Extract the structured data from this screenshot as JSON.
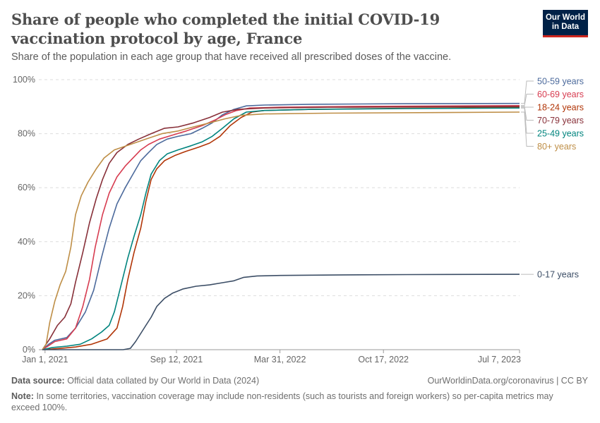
{
  "header": {
    "title": "Share of people who completed the initial COVID-19 vaccination protocol by age, France",
    "subtitle": "Share of the population in each age group that have received all prescribed doses of the vaccine.",
    "logo_line1": "Our World",
    "logo_line2": "in Data"
  },
  "footer": {
    "source_label": "Data source:",
    "source_text": "Official data collated by Our World in Data (2024)",
    "citation": "OurWorldinData.org/coronavirus | CC BY",
    "note_label": "Note:",
    "note_text": "In some territories, vaccination coverage may include non-residents (such as tourists and foreign workers) so per-capita metrics may exceed 100%."
  },
  "chart_data": {
    "type": "line",
    "x_ticks": [
      "2021-01-01",
      "2021-09-12",
      "2022-03-31",
      "2022-10-17",
      "2023-07-07"
    ],
    "x_tick_labels": [
      "Jan 1, 2021",
      "Sep 12, 2021",
      "Mar 31, 2022",
      "Oct 17, 2022",
      "Jul 7, 2023"
    ],
    "y_ticks": [
      0,
      20,
      40,
      60,
      80,
      100
    ],
    "y_tick_labels": [
      "0%",
      "20%",
      "40%",
      "60%",
      "80%",
      "100%"
    ],
    "xlim": [
      "2020-12-20",
      "2023-07-07"
    ],
    "ylim": [
      0,
      100
    ],
    "grid": "horizontal dashed",
    "legend": "right, line-end labels",
    "series": [
      {
        "name": "50-59 years",
        "color": "#4c6a9c",
        "points": [
          [
            "2020-12-27",
            0
          ],
          [
            "2021-01-08",
            2
          ],
          [
            "2021-01-20",
            3.5
          ],
          [
            "2021-02-12",
            4.5
          ],
          [
            "2021-03-01",
            8
          ],
          [
            "2021-03-20",
            14
          ],
          [
            "2021-04-05",
            22
          ],
          [
            "2021-04-20",
            34
          ],
          [
            "2021-05-05",
            45
          ],
          [
            "2021-05-20",
            54
          ],
          [
            "2021-06-05",
            60
          ],
          [
            "2021-06-20",
            65
          ],
          [
            "2021-07-05",
            70
          ],
          [
            "2021-07-20",
            73
          ],
          [
            "2021-08-05",
            76
          ],
          [
            "2021-08-25",
            78
          ],
          [
            "2021-09-15",
            79
          ],
          [
            "2021-10-10",
            80
          ],
          [
            "2021-11-01",
            82
          ],
          [
            "2021-11-20",
            84
          ],
          [
            "2021-12-10",
            87
          ],
          [
            "2022-01-01",
            89
          ],
          [
            "2022-01-25",
            90.3
          ],
          [
            "2022-03-01",
            90.6
          ],
          [
            "2022-06-01",
            90.9
          ],
          [
            "2022-12-01",
            91.1
          ],
          [
            "2023-07-07",
            91.2
          ]
        ]
      },
      {
        "name": "60-69 years",
        "color": "#d73c50",
        "points": [
          [
            "2020-12-27",
            0
          ],
          [
            "2021-01-08",
            1.5
          ],
          [
            "2021-01-20",
            3
          ],
          [
            "2021-02-12",
            4
          ],
          [
            "2021-03-01",
            8
          ],
          [
            "2021-03-15",
            16
          ],
          [
            "2021-03-28",
            26
          ],
          [
            "2021-04-08",
            38
          ],
          [
            "2021-04-22",
            50
          ],
          [
            "2021-05-05",
            58
          ],
          [
            "2021-05-20",
            64
          ],
          [
            "2021-06-05",
            68
          ],
          [
            "2021-06-20",
            71
          ],
          [
            "2021-07-05",
            74
          ],
          [
            "2021-07-20",
            76
          ],
          [
            "2021-08-10",
            78
          ],
          [
            "2021-09-05",
            79.5
          ],
          [
            "2021-10-01",
            81
          ],
          [
            "2021-11-01",
            83
          ],
          [
            "2021-11-25",
            85
          ],
          [
            "2021-12-15",
            87
          ],
          [
            "2022-01-05",
            88.5
          ],
          [
            "2022-02-01",
            89.5
          ],
          [
            "2022-04-01",
            89.8
          ],
          [
            "2022-09-01",
            90.1
          ],
          [
            "2023-07-07",
            90.4
          ]
        ]
      },
      {
        "name": "18-24 years",
        "color": "#b13507",
        "points": [
          [
            "2020-12-27",
            0
          ],
          [
            "2021-02-01",
            0.5
          ],
          [
            "2021-03-01",
            1
          ],
          [
            "2021-04-01",
            2
          ],
          [
            "2021-05-01",
            4
          ],
          [
            "2021-05-20",
            8
          ],
          [
            "2021-05-31",
            16
          ],
          [
            "2021-06-10",
            26
          ],
          [
            "2021-06-22",
            36
          ],
          [
            "2021-07-05",
            45
          ],
          [
            "2021-07-15",
            55
          ],
          [
            "2021-07-25",
            63
          ],
          [
            "2021-08-05",
            67
          ],
          [
            "2021-08-20",
            70
          ],
          [
            "2021-09-10",
            72
          ],
          [
            "2021-10-01",
            73.5
          ],
          [
            "2021-10-25",
            75
          ],
          [
            "2021-11-15",
            76.5
          ],
          [
            "2021-12-05",
            79
          ],
          [
            "2021-12-25",
            83
          ],
          [
            "2022-01-15",
            86
          ],
          [
            "2022-02-05",
            88
          ],
          [
            "2022-03-01",
            88.6
          ],
          [
            "2022-06-01",
            89
          ],
          [
            "2022-12-01",
            89.4
          ],
          [
            "2023-07-07",
            89.8
          ]
        ]
      },
      {
        "name": "70-79 years",
        "color": "#883039",
        "points": [
          [
            "2020-12-27",
            0
          ],
          [
            "2021-01-10",
            4
          ],
          [
            "2021-01-25",
            9
          ],
          [
            "2021-02-08",
            12
          ],
          [
            "2021-02-20",
            17
          ],
          [
            "2021-03-01",
            25
          ],
          [
            "2021-03-15",
            36
          ],
          [
            "2021-03-28",
            47
          ],
          [
            "2021-04-10",
            56
          ],
          [
            "2021-04-22",
            63
          ],
          [
            "2021-05-05",
            69
          ],
          [
            "2021-05-20",
            73
          ],
          [
            "2021-06-10",
            76
          ],
          [
            "2021-07-01",
            78
          ],
          [
            "2021-07-25",
            80
          ],
          [
            "2021-08-20",
            82
          ],
          [
            "2021-09-15",
            82.5
          ],
          [
            "2021-10-15",
            84
          ],
          [
            "2021-11-15",
            86
          ],
          [
            "2021-12-10",
            88
          ],
          [
            "2022-01-10",
            89
          ],
          [
            "2022-03-01",
            89.5
          ],
          [
            "2022-07-01",
            89.8
          ],
          [
            "2023-07-07",
            90.1
          ]
        ]
      },
      {
        "name": "25-49 years",
        "color": "#00847e",
        "points": [
          [
            "2020-12-27",
            0
          ],
          [
            "2021-01-15",
            0.8
          ],
          [
            "2021-02-12",
            1.3
          ],
          [
            "2021-03-10",
            2
          ],
          [
            "2021-04-01",
            4
          ],
          [
            "2021-04-20",
            6.5
          ],
          [
            "2021-05-05",
            9
          ],
          [
            "2021-05-15",
            14
          ],
          [
            "2021-05-28",
            24
          ],
          [
            "2021-06-10",
            34
          ],
          [
            "2021-06-22",
            42
          ],
          [
            "2021-07-05",
            50
          ],
          [
            "2021-07-15",
            58
          ],
          [
            "2021-07-25",
            65
          ],
          [
            "2021-08-10",
            70
          ],
          [
            "2021-08-25",
            72.5
          ],
          [
            "2021-09-15",
            74
          ],
          [
            "2021-10-10",
            75.5
          ],
          [
            "2021-11-01",
            77
          ],
          [
            "2021-11-20",
            79
          ],
          [
            "2021-12-10",
            82
          ],
          [
            "2022-01-01",
            85.5
          ],
          [
            "2022-01-25",
            88
          ],
          [
            "2022-03-01",
            88.6
          ],
          [
            "2022-06-01",
            89
          ],
          [
            "2022-12-01",
            89.3
          ],
          [
            "2023-07-07",
            89.5
          ]
        ]
      },
      {
        "name": "80+ years",
        "color": "#be8e46",
        "points": [
          [
            "2020-12-27",
            0
          ],
          [
            "2021-01-03",
            2
          ],
          [
            "2021-01-10",
            10
          ],
          [
            "2021-01-20",
            18
          ],
          [
            "2021-01-30",
            24
          ],
          [
            "2021-02-10",
            29
          ],
          [
            "2021-02-20",
            38
          ],
          [
            "2021-03-01",
            50
          ],
          [
            "2021-03-12",
            57
          ],
          [
            "2021-03-25",
            62
          ],
          [
            "2021-04-10",
            67
          ],
          [
            "2021-04-25",
            71
          ],
          [
            "2021-05-15",
            74
          ],
          [
            "2021-06-15",
            76
          ],
          [
            "2021-07-15",
            78
          ],
          [
            "2021-08-15",
            80
          ],
          [
            "2021-09-15",
            81
          ],
          [
            "2021-10-15",
            82.5
          ],
          [
            "2021-11-15",
            84
          ],
          [
            "2021-12-15",
            85.5
          ],
          [
            "2022-01-15",
            86.8
          ],
          [
            "2022-03-01",
            87.3
          ],
          [
            "2022-07-01",
            87.6
          ],
          [
            "2023-07-07",
            88
          ]
        ]
      },
      {
        "name": "0-17 years",
        "color": "#3c4e66",
        "points": [
          [
            "2020-12-27",
            0
          ],
          [
            "2021-06-01",
            0
          ],
          [
            "2021-06-15",
            0.5
          ],
          [
            "2021-06-25",
            3
          ],
          [
            "2021-07-05",
            6
          ],
          [
            "2021-07-15",
            9
          ],
          [
            "2021-07-25",
            12
          ],
          [
            "2021-08-05",
            16
          ],
          [
            "2021-08-20",
            19
          ],
          [
            "2021-09-05",
            21
          ],
          [
            "2021-09-25",
            22.5
          ],
          [
            "2021-10-20",
            23.5
          ],
          [
            "2021-11-15",
            24
          ],
          [
            "2021-12-10",
            24.8
          ],
          [
            "2022-01-01",
            25.5
          ],
          [
            "2022-01-20",
            26.8
          ],
          [
            "2022-02-15",
            27.3
          ],
          [
            "2022-04-01",
            27.5
          ],
          [
            "2022-08-01",
            27.7
          ],
          [
            "2022-12-01",
            27.8
          ],
          [
            "2023-07-07",
            27.9
          ]
        ]
      }
    ]
  }
}
